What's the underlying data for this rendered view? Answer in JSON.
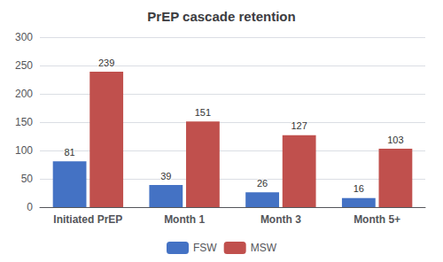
{
  "chart_data": {
    "type": "bar",
    "title": "PrEP cascade retention",
    "categories": [
      "Initiated PrEP",
      "Month 1",
      "Month 3",
      "Month 5+"
    ],
    "series": [
      {
        "name": "FSW",
        "color": "#4472C4",
        "values": [
          81,
          39,
          26,
          16
        ]
      },
      {
        "name": "MSW",
        "color": "#C0504D",
        "values": [
          239,
          151,
          127,
          103
        ]
      }
    ],
    "ylim": [
      0,
      300
    ],
    "yticks": [
      0,
      50,
      100,
      150,
      200,
      250,
      300
    ],
    "grid": true,
    "legend": "bottom",
    "data_labels": true
  }
}
